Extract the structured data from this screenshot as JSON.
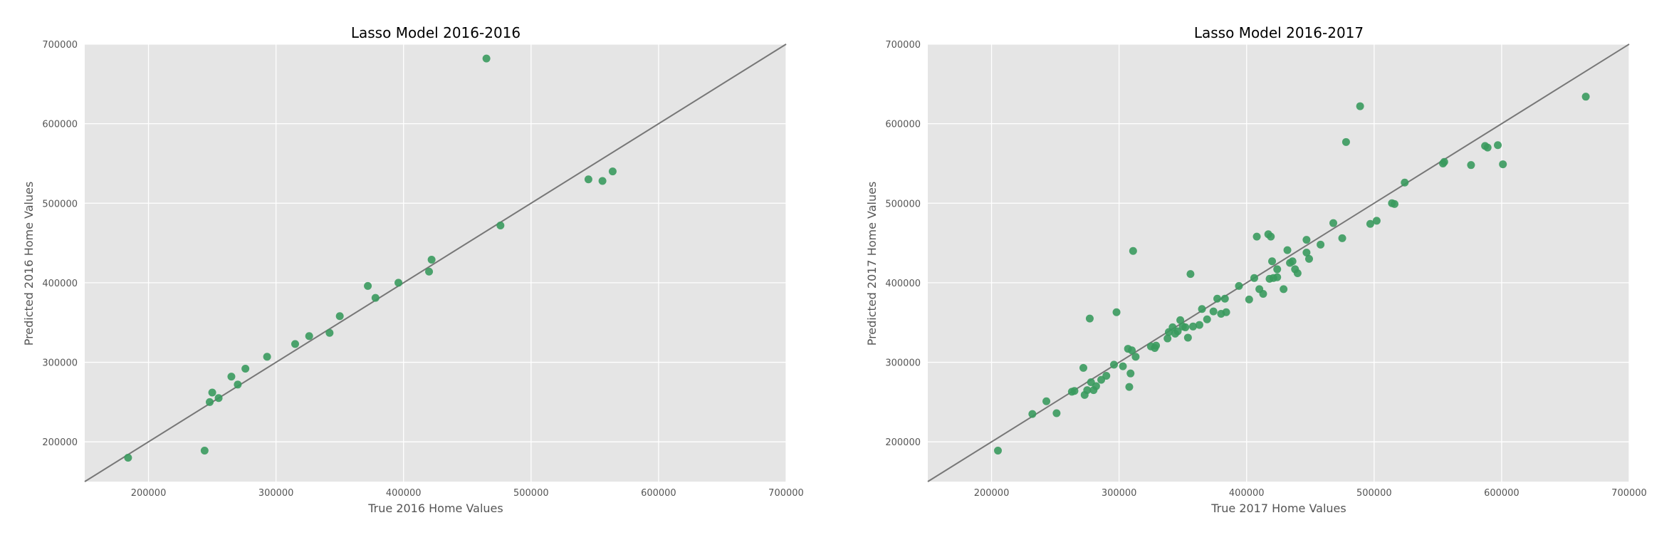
{
  "colors": {
    "plot_bg": "#E5E5E5",
    "grid": "#FFFFFF",
    "point": "#3A9A5E",
    "identity_line": "#777777",
    "text": "#555555"
  },
  "chart_data": [
    {
      "type": "scatter",
      "title": "Lasso Model 2016-2016",
      "xlabel": "True 2016 Home Values",
      "ylabel": "Predicted 2016 Home Values",
      "xlim": [
        150000,
        700000
      ],
      "ylim": [
        150000,
        700000
      ],
      "xticks": [
        200000,
        300000,
        400000,
        500000,
        600000,
        700000
      ],
      "yticks": [
        200000,
        300000,
        400000,
        500000,
        600000,
        700000
      ],
      "grid": true,
      "reference_line": "y = x",
      "x": [
        184000,
        244000,
        248000,
        250000,
        255000,
        265000,
        270000,
        276000,
        293000,
        315000,
        326000,
        342000,
        350000,
        372000,
        378000,
        396000,
        420000,
        422000,
        465000,
        476000,
        545000,
        556000,
        564000
      ],
      "y": [
        180000,
        189000,
        250000,
        262000,
        255000,
        282000,
        272000,
        292000,
        307000,
        323000,
        333000,
        337000,
        358000,
        396000,
        381000,
        400000,
        414000,
        429000,
        682000,
        472000,
        530000,
        528000,
        540000
      ]
    },
    {
      "type": "scatter",
      "title": "Lasso Model 2016-2017",
      "xlabel": "True 2017 Home Values",
      "ylabel": "Predicted 2017 Home Values",
      "xlim": [
        150000,
        700000
      ],
      "ylim": [
        150000,
        700000
      ],
      "xticks": [
        200000,
        300000,
        400000,
        500000,
        600000,
        700000
      ],
      "yticks": [
        200000,
        300000,
        400000,
        500000,
        600000,
        700000
      ],
      "grid": true,
      "reference_line": "y = x",
      "x": [
        205000,
        232000,
        243000,
        251000,
        263000,
        265000,
        272000,
        273000,
        275000,
        277000,
        278000,
        280000,
        282000,
        286000,
        290000,
        296000,
        298000,
        303000,
        307000,
        308000,
        309000,
        310000,
        311000,
        313000,
        325000,
        328000,
        329000,
        338000,
        339000,
        342000,
        344000,
        346000,
        348000,
        350000,
        352000,
        354000,
        356000,
        358000,
        363000,
        365000,
        369000,
        374000,
        377000,
        380000,
        383000,
        384000,
        394000,
        402000,
        406000,
        408000,
        410000,
        413000,
        417000,
        418000,
        419000,
        420000,
        421000,
        424000,
        424000,
        429000,
        432000,
        434000,
        436000,
        438000,
        440000,
        447000,
        447000,
        449000,
        458000,
        468000,
        475000,
        478000,
        489000,
        497000,
        502000,
        514000,
        516000,
        524000,
        554000,
        555000,
        576000,
        587000,
        589000,
        597000,
        601000,
        666000
      ],
      "y": [
        189000,
        235000,
        251000,
        236000,
        263000,
        264000,
        293000,
        259000,
        265000,
        355000,
        275000,
        265000,
        270000,
        278000,
        283000,
        297000,
        363000,
        295000,
        317000,
        269000,
        286000,
        315000,
        440000,
        307000,
        320000,
        318000,
        321000,
        330000,
        338000,
        344000,
        336000,
        339000,
        353000,
        345000,
        344000,
        331000,
        411000,
        345000,
        347000,
        367000,
        354000,
        364000,
        380000,
        361000,
        380000,
        363000,
        396000,
        379000,
        406000,
        458000,
        392000,
        386000,
        461000,
        405000,
        458000,
        427000,
        406000,
        407000,
        417000,
        392000,
        441000,
        425000,
        427000,
        417000,
        412000,
        438000,
        454000,
        430000,
        448000,
        475000,
        456000,
        577000,
        622000,
        474000,
        478000,
        500000,
        499000,
        526000,
        550000,
        552000,
        548000,
        572000,
        570000,
        573000,
        549000,
        634000
      ]
    }
  ]
}
